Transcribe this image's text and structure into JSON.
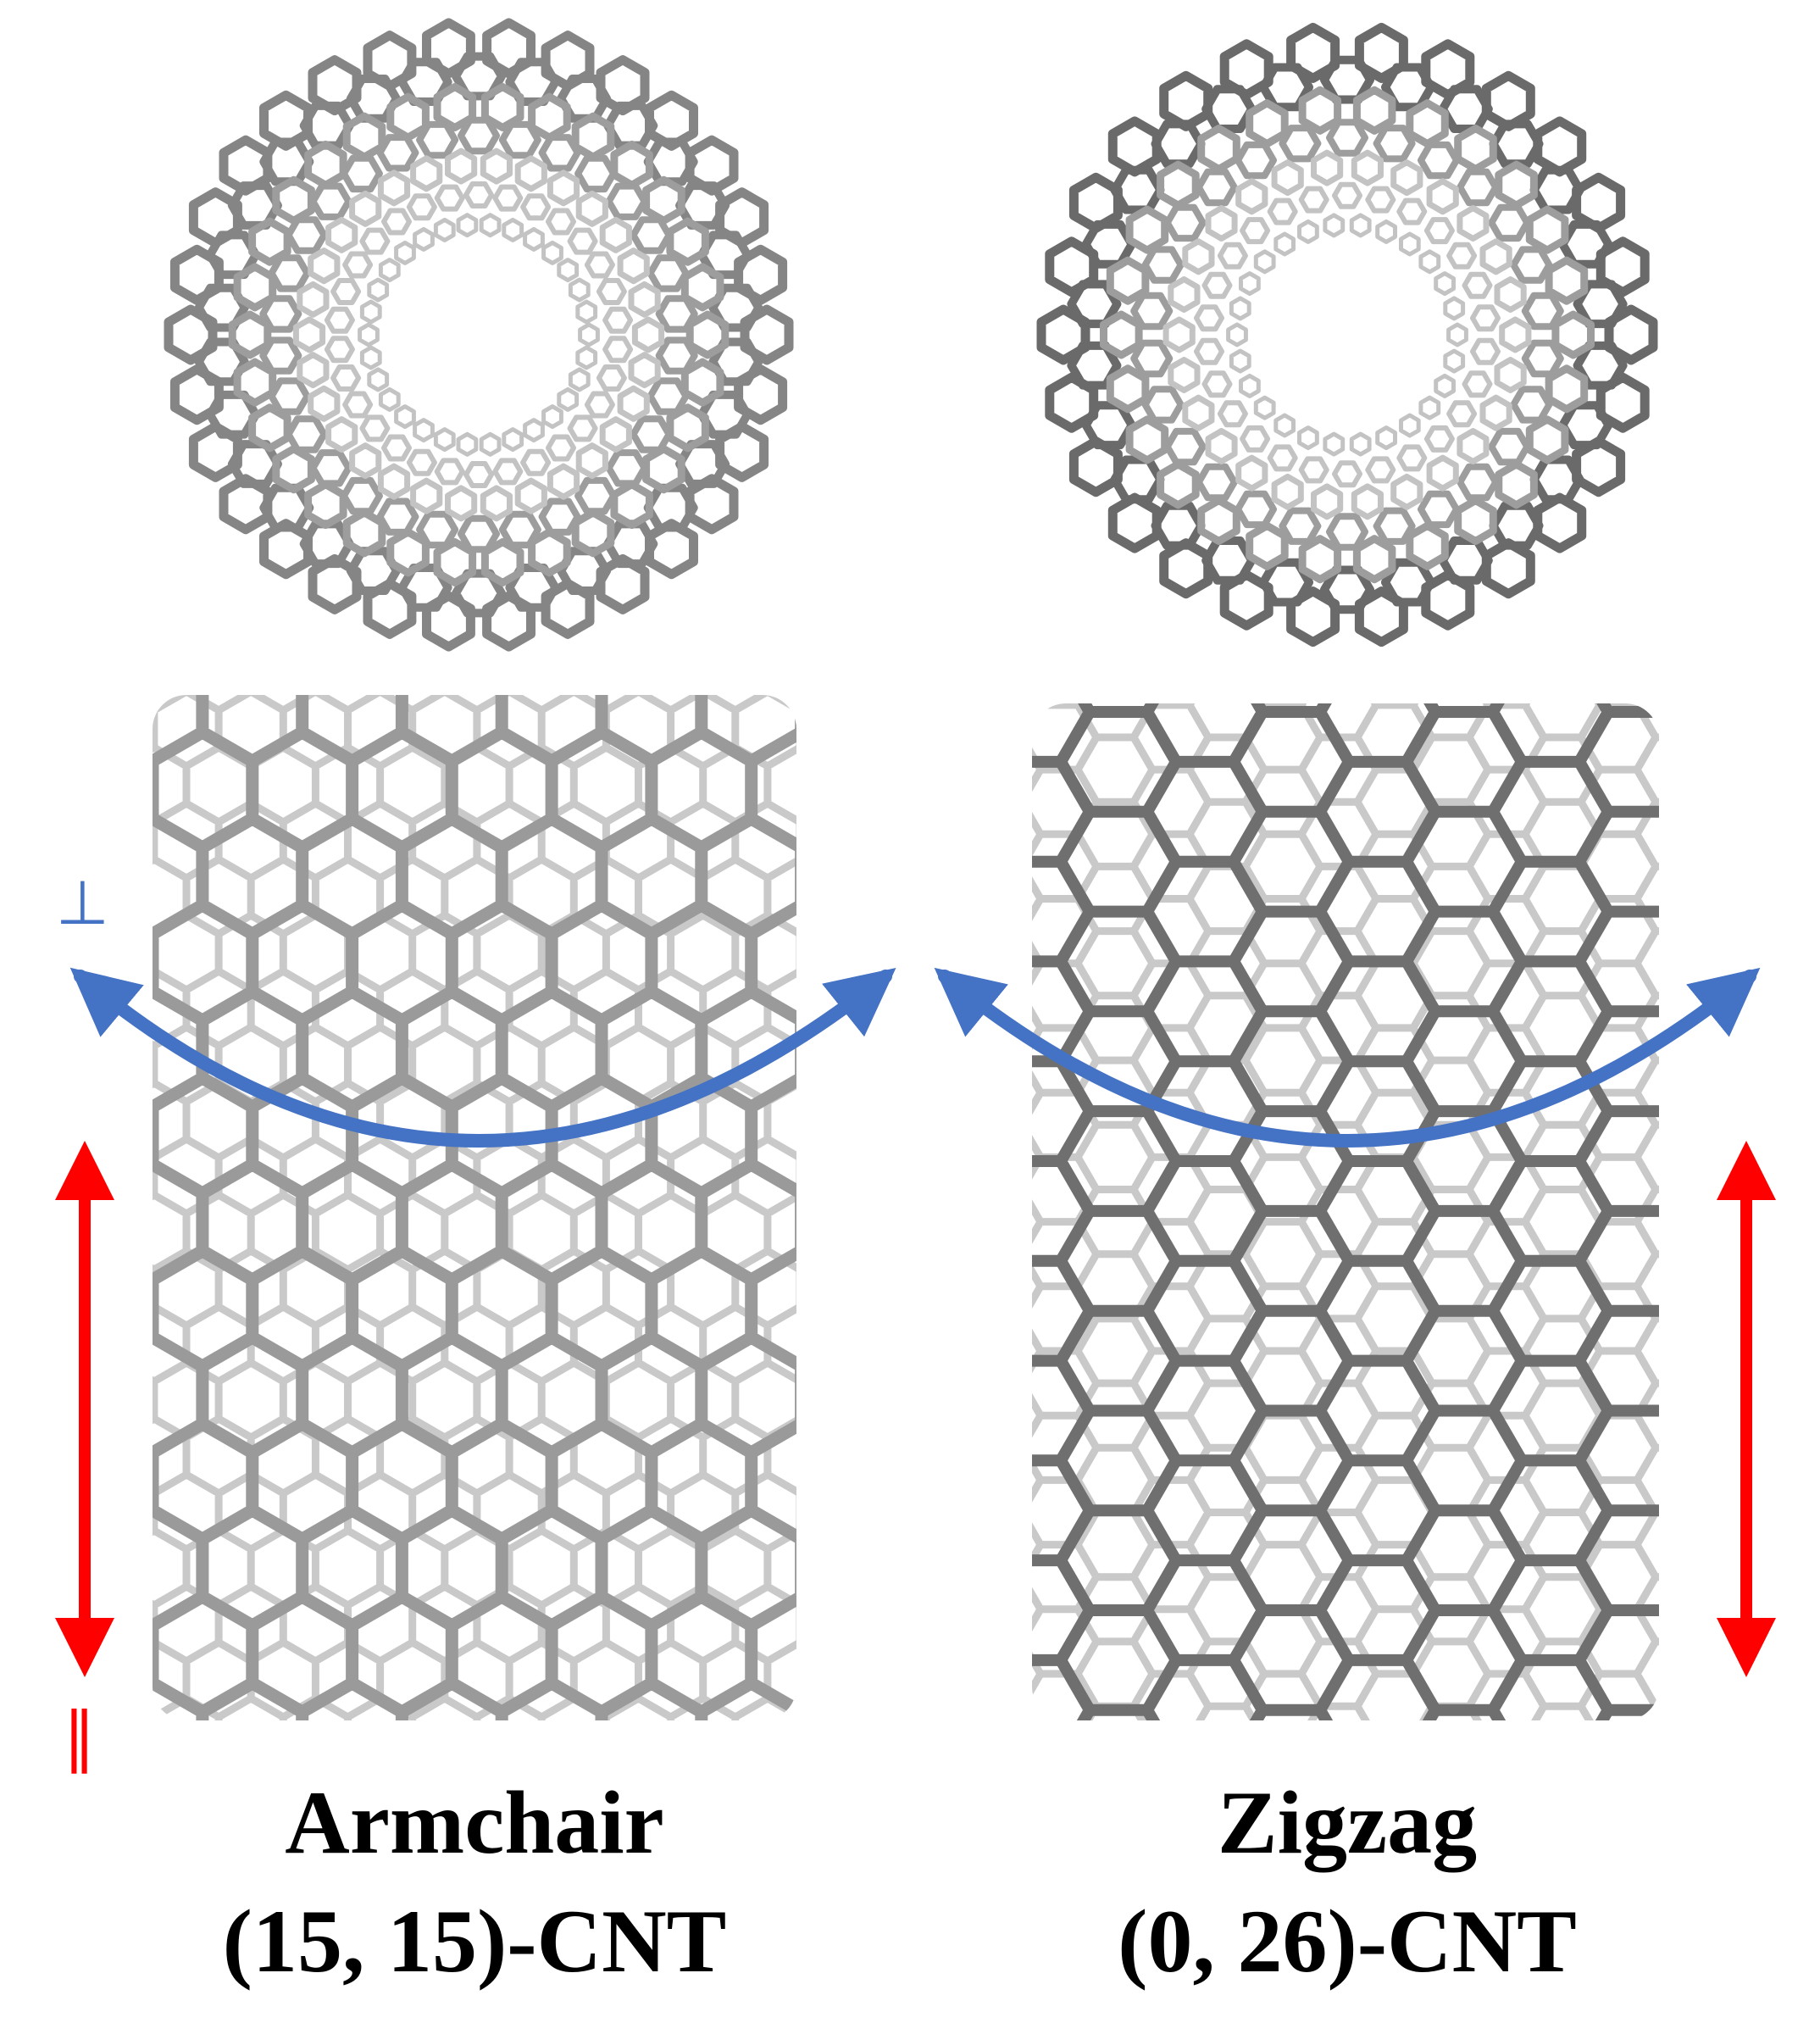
{
  "panels": [
    {
      "name": "Armchair",
      "chirality": "(15, 15)-CNT"
    },
    {
      "name": "Zigzag",
      "chirality": "(0, 26)-CNT"
    }
  ],
  "direction_labels": {
    "perpendicular": "⊥",
    "parallel": "∥"
  },
  "colors": {
    "bond": "#9a9a9a",
    "bond_dark": "#6f6f6f",
    "perpendicular_arrow": "#4472c4",
    "parallel_arrow": "#ff0000",
    "caption": "#000000"
  }
}
